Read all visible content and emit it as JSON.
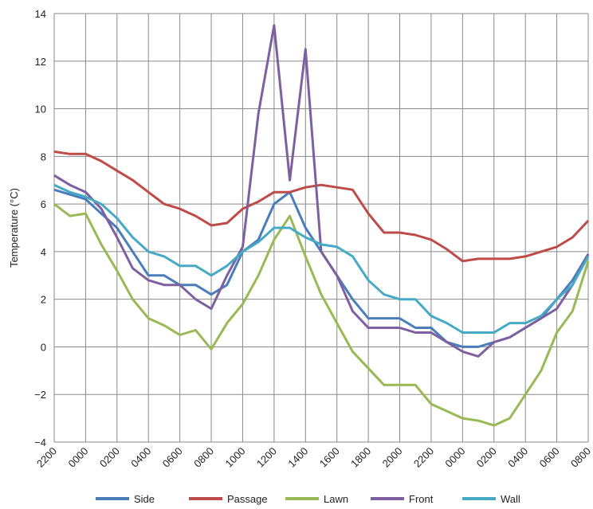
{
  "chart_data": {
    "type": "line",
    "y_label": "Temperature  (°C)",
    "x": [
      0,
      1,
      2,
      3,
      4,
      5,
      6,
      7,
      8,
      9,
      10,
      11,
      12,
      13,
      14,
      15,
      16,
      17,
      18,
      19,
      20,
      21,
      22,
      23,
      24,
      25,
      26,
      27,
      28,
      29,
      30,
      31,
      32,
      33,
      34
    ],
    "xlim": [
      0,
      34
    ],
    "xticks": [
      {
        "value": 0,
        "label": "2200"
      },
      {
        "value": 2,
        "label": "0000"
      },
      {
        "value": 4,
        "label": "0200"
      },
      {
        "value": 6,
        "label": "0400"
      },
      {
        "value": 8,
        "label": "0600"
      },
      {
        "value": 10,
        "label": "0800"
      },
      {
        "value": 12,
        "label": "1000"
      },
      {
        "value": 14,
        "label": "1200"
      },
      {
        "value": 16,
        "label": "1400"
      },
      {
        "value": 18,
        "label": "1600"
      },
      {
        "value": 20,
        "label": "1800"
      },
      {
        "value": 22,
        "label": "2000"
      },
      {
        "value": 24,
        "label": "2200"
      },
      {
        "value": 26,
        "label": "0000"
      },
      {
        "value": 28,
        "label": "0200"
      },
      {
        "value": 30,
        "label": "0400"
      },
      {
        "value": 32,
        "label": "0600"
      },
      {
        "value": 34,
        "label": "0800"
      }
    ],
    "ylim": [
      -4,
      14
    ],
    "yticks": [
      {
        "value": -4,
        "label": "−4"
      },
      {
        "value": -2,
        "label": "−2"
      },
      0,
      2,
      4,
      6,
      8,
      10,
      12,
      14
    ],
    "grid": true,
    "legend": "bottom",
    "series": [
      {
        "name": "Side",
        "color": "#4a7ebb",
        "values": [
          6.6,
          6.4,
          6.2,
          5.6,
          5.0,
          4.0,
          3.0,
          3.0,
          2.6,
          2.6,
          2.2,
          2.6,
          4.0,
          4.5,
          6.0,
          6.5,
          5.0,
          4.0,
          3.0,
          2.0,
          1.2,
          1.2,
          1.2,
          0.8,
          0.8,
          0.2,
          0.0,
          0.0,
          0.2,
          0.4,
          0.8,
          1.2,
          2.0,
          2.8,
          3.9
        ]
      },
      {
        "name": "Passage",
        "color": "#be4b48",
        "values": [
          8.2,
          8.1,
          8.1,
          7.8,
          7.4,
          7.0,
          6.5,
          6.0,
          5.8,
          5.5,
          5.1,
          5.2,
          5.8,
          6.1,
          6.5,
          6.5,
          6.7,
          6.8,
          6.7,
          6.6,
          5.6,
          4.8,
          4.8,
          4.7,
          4.5,
          4.1,
          3.6,
          3.7,
          3.7,
          3.7,
          3.8,
          4.0,
          4.2,
          4.6,
          5.3
        ]
      },
      {
        "name": "Lawn",
        "color": "#98b954",
        "values": [
          6.0,
          5.5,
          5.6,
          4.3,
          3.2,
          2.0,
          1.2,
          0.9,
          0.5,
          0.7,
          -0.1,
          1.0,
          1.8,
          3.0,
          4.5,
          5.5,
          3.8,
          2.2,
          1.0,
          -0.2,
          -0.9,
          -1.6,
          -1.6,
          -1.6,
          -2.4,
          -2.7,
          -3.0,
          -3.1,
          -3.3,
          -3.0,
          -2.0,
          -1.0,
          0.6,
          1.5,
          3.6
        ]
      },
      {
        "name": "Front",
        "color": "#7d60a0",
        "values": [
          7.2,
          6.8,
          6.5,
          5.8,
          4.6,
          3.3,
          2.8,
          2.6,
          2.6,
          2.0,
          1.6,
          3.0,
          4.2,
          9.8,
          13.5,
          7.0,
          12.5,
          4.0,
          3.0,
          1.5,
          0.8,
          0.8,
          0.8,
          0.6,
          0.6,
          0.2,
          -0.2,
          -0.4,
          0.2,
          0.4,
          0.8,
          1.2,
          1.6,
          2.6,
          3.9
        ]
      },
      {
        "name": "Wall",
        "color": "#46aac5",
        "values": [
          6.8,
          6.5,
          6.3,
          6.0,
          5.4,
          4.6,
          4.0,
          3.8,
          3.4,
          3.4,
          3.0,
          3.4,
          4.0,
          4.4,
          5.0,
          5.0,
          4.6,
          4.3,
          4.2,
          3.8,
          2.8,
          2.2,
          2.0,
          2.0,
          1.3,
          1.0,
          0.6,
          0.6,
          0.6,
          1.0,
          1.0,
          1.3,
          2.0,
          2.6,
          3.8
        ]
      }
    ]
  }
}
